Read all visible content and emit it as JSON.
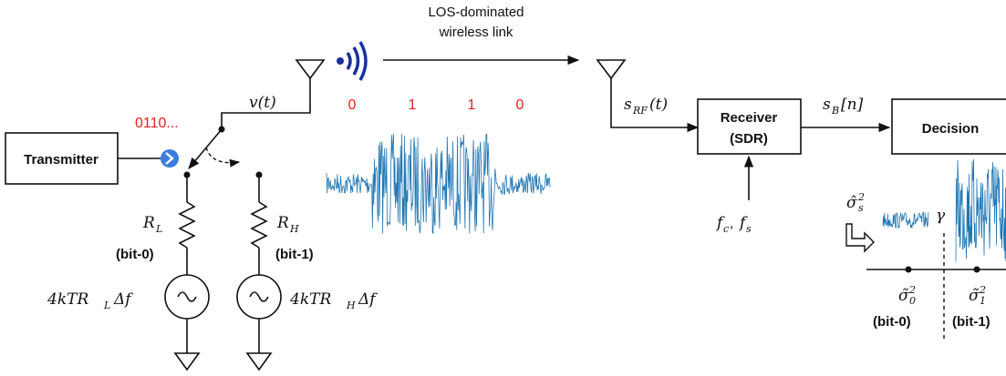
{
  "colors": {
    "signal": "#1f77b4",
    "bits": "#e2231a",
    "line": "#111111",
    "toggle": "#3b7ddd"
  },
  "link": {
    "line1": "LOS-dominated",
    "line2": "wireless link"
  },
  "transmitter": {
    "label": "Transmitter",
    "bitstream": "0110..."
  },
  "signals": {
    "v": "v(t)",
    "s_rf_main": "s",
    "s_rf_sub": "RF",
    "s_rf_arg": "(t)",
    "s_b_main": "s",
    "s_b_sub": "B",
    "s_b_arg": "[n]"
  },
  "bits": [
    "0",
    "1",
    "1",
    "0"
  ],
  "receiver": {
    "line1": "Receiver",
    "line2": "(SDR)",
    "params_fc": "f",
    "params_fc_sub": "c",
    "params_fs": "f",
    "params_fs_sub": "s"
  },
  "decision": {
    "label": "Decision"
  },
  "load_low": {
    "res_main": "R",
    "res_sub": "L",
    "bit": "(bit-0)",
    "source_a": "4kTR",
    "source_sub": "L",
    "source_b": "Δf"
  },
  "load_high": {
    "res_main": "R",
    "res_sub": "H",
    "bit": "(bit-1)",
    "source_a": "4kTR",
    "source_sub": "H",
    "source_b": "Δf"
  },
  "estimate": {
    "sigma_hat": "σ̂",
    "threshold": "γ",
    "sigma0": "σ̃",
    "sigma0_sub": "0",
    "sigma1": "σ̃",
    "sigma1_sub": "1",
    "bit0": "(bit-0)",
    "bit1": "(bit-1)",
    "sup": "2",
    "hat_sub": "s"
  },
  "icons": [
    "antenna-icon",
    "wireless-signal-icon",
    "ground-icon",
    "ac-source-icon",
    "resistor-icon",
    "chevron-right-icon",
    "hollow-arrow-icon"
  ]
}
